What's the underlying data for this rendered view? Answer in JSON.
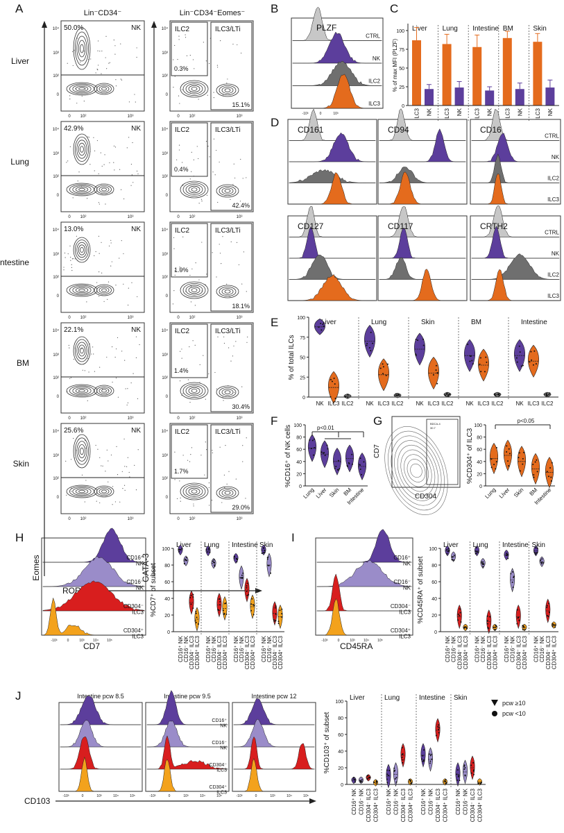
{
  "colors": {
    "nk": "#5c3e9c",
    "nklight": "#9a8cc9",
    "ctrl": "#c7c7c7",
    "ilc2": "#6f6f6f",
    "ilc3": "#e46b1d",
    "red": "#d81e1e",
    "orange": "#f3a21c"
  },
  "panelA": {
    "label": "A",
    "col1_title": "Lin⁻CD34⁻",
    "col2_title": "Lin⁻CD34⁻Eomes⁻",
    "tissues": [
      "Liver",
      "Lung",
      "Intestine",
      "BM",
      "Skin"
    ],
    "nk_pct": [
      "50.0%",
      "42.9%",
      "13.0%",
      "22.1%",
      "25.6%"
    ],
    "ilc2_pct": [
      "0.3%",
      "0.4%",
      "1.9%",
      "1.4%",
      "1.7%"
    ],
    "ilc3_pct": [
      "15.1%",
      "42.4%",
      "18.1%",
      "30.4%",
      "29.0%"
    ],
    "gate_nk": "NK",
    "gate_ilc2": "ILC2",
    "gate_ilc3": "ILC3/LTi",
    "y1": "Eomes",
    "y2": "GATA-3",
    "x": "RORγt"
  },
  "panelB": {
    "label": "B",
    "title": "PLZF",
    "rows": [
      "CTRL",
      "NK",
      "ILC2",
      "ILC3"
    ]
  },
  "panelC": {
    "label": "C",
    "ylabel": "% of max MFI (PLZF)",
    "tissues": [
      "Liver",
      "Lung",
      "Intestine",
      "BM",
      "Skin"
    ],
    "ticks": [
      "0",
      "25",
      "50",
      "75",
      "100"
    ],
    "ilc3": [
      87,
      82,
      78,
      90,
      85
    ],
    "ilc3_err": [
      17,
      13,
      16,
      9,
      11
    ],
    "nk": [
      22,
      24,
      20,
      22,
      24
    ],
    "nk_err": [
      6,
      8,
      5,
      8,
      10
    ],
    "xlabels": [
      "ILC3",
      "NK"
    ]
  },
  "panelD": {
    "label": "D",
    "markers": [
      "CD161",
      "CD94",
      "CD16",
      "CD127",
      "CD117",
      "CRTH2"
    ],
    "rows": [
      "CTRL",
      "NK",
      "ILC2",
      "ILC3"
    ]
  },
  "panelE": {
    "label": "E",
    "ylabel": "% of total ILCs",
    "tissues": [
      "Liver",
      "Lung",
      "Skin",
      "BM",
      "Intestine"
    ],
    "ticks": [
      "0",
      "25",
      "50",
      "75",
      "100"
    ],
    "xlabels": [
      "NK",
      "ILC3",
      "ILC2"
    ],
    "medians": [
      [
        88,
        12,
        1
      ],
      [
        70,
        28,
        2
      ],
      [
        60,
        30,
        3
      ],
      [
        52,
        40,
        3
      ],
      [
        52,
        45,
        3
      ]
    ]
  },
  "panelF": {
    "label": "F",
    "ylabel": "%CD16⁺ of NK cells",
    "sig": "p<0.01",
    "ticks": [
      "0",
      "20",
      "40",
      "60",
      "80",
      "100"
    ],
    "xlabels": [
      "Lung",
      "Liver",
      "Skin",
      "BM",
      "Intestine"
    ],
    "medians": [
      62,
      52,
      40,
      45,
      32
    ]
  },
  "panelG": {
    "label": "G",
    "xlabel": "CD304",
    "ylabel": "CD7",
    "gate_label": "BDCA-4",
    "gate_value": "30.7",
    "ylabel2": "%CD304⁺ of ILC3",
    "sig": "p<0.05",
    "ticks": [
      "0",
      "20",
      "40",
      "60",
      "80",
      "100"
    ],
    "xlabels": [
      "Lung",
      "Liver",
      "Skin",
      "BM",
      "Intestine"
    ],
    "medians": [
      45,
      50,
      40,
      28,
      22
    ]
  },
  "panelH": {
    "label": "H",
    "xlabel": "CD7",
    "ylabel": "%CD7⁺ of subset",
    "rows": [
      "CD16⁺\nNK",
      "CD16⁻\nNK",
      "CD304⁻\nILC3",
      "CD304⁺\nILC3"
    ],
    "tissues": [
      "Liver",
      "Lung",
      "Intestine",
      "Skin"
    ],
    "ticks": [
      "0",
      "20",
      "40",
      "60",
      "80",
      "100"
    ],
    "xlabels": [
      "CD16⁺ NK",
      "CD16⁻ NK",
      "CD304⁻ ILC3",
      "CD304⁺ ILC3"
    ],
    "medians": [
      [
        98,
        85,
        35,
        15
      ],
      [
        97,
        82,
        32,
        28
      ],
      [
        88,
        65,
        50,
        30
      ],
      [
        98,
        80,
        22,
        18
      ]
    ]
  },
  "panelI": {
    "label": "I",
    "xlabel": "CD45RA",
    "ylabel": "%CD45RA⁺ of subset",
    "rows": [
      "CD16⁺\nNK",
      "CD16⁻\nNK",
      "CD304⁻\nILC3",
      "CD304⁺\nILC3"
    ],
    "tissues": [
      "Liver",
      "Lung",
      "Intestine",
      "Skin"
    ],
    "ticks": [
      "0",
      "20",
      "40",
      "60",
      "80",
      "100"
    ],
    "xlabels": [
      "CD16⁺ NK",
      "CD16⁻ NK",
      "CD304⁻ ILC3",
      "CD304⁺ ILC3"
    ],
    "medians": [
      [
        97,
        90,
        18,
        5
      ],
      [
        97,
        82,
        12,
        5
      ],
      [
        92,
        62,
        18,
        5
      ],
      [
        97,
        84,
        25,
        8
      ]
    ]
  },
  "panelJ": {
    "label": "J",
    "xlabel": "CD103",
    "titles": [
      "Intestine pcw 8.5",
      "Intestine pcw 9.5",
      "Intestine pcw 12"
    ],
    "rows": [
      "CD16⁺\nNK",
      "CD16⁻\nNK",
      "CD304⁻\nILC3",
      "CD304⁺\nILC3"
    ],
    "ylabel": "%CD103⁺ of subset",
    "tissues": [
      "Liver",
      "Lung",
      "Intestine",
      "Skin"
    ],
    "ticks": [
      "0",
      "20",
      "40",
      "60",
      "80",
      "100"
    ],
    "xlabels": [
      "CD16⁺ NK",
      "CD16⁻ NK",
      "CD304⁻ ILC3",
      "CD304⁺ ILC3"
    ],
    "legend": [
      "pcw ≥10",
      "pcw <10"
    ],
    "medians": [
      [
        5,
        5,
        8,
        2
      ],
      [
        10,
        12,
        35,
        3
      ],
      [
        35,
        30,
        65,
        3
      ],
      [
        12,
        15,
        20,
        3
      ]
    ]
  },
  "axis_ticks": {
    "flow_x": [
      "0",
      "10²",
      "10³"
    ],
    "flow_y": [
      "0",
      "10²",
      "10³",
      "10⁴"
    ],
    "hist_x": [
      "-10³",
      "0",
      "10³",
      "10⁴",
      "10⁵"
    ]
  }
}
